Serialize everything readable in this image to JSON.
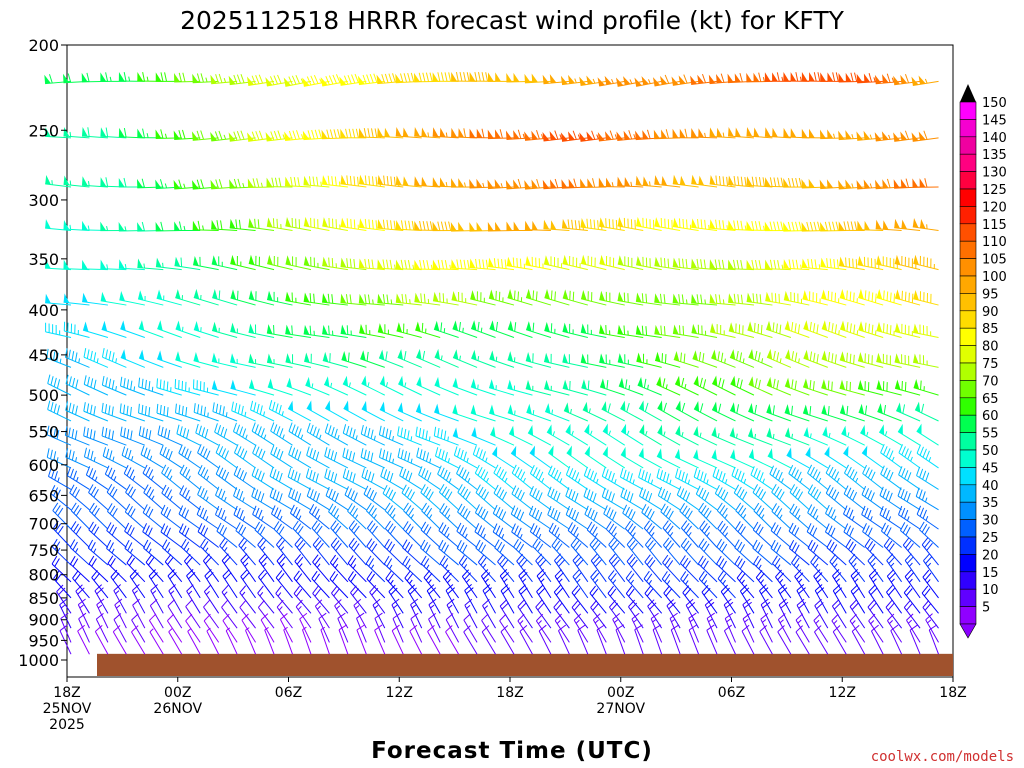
{
  "chart_data": {
    "type": "wind-barb-time-height",
    "title": "2025112518 HRRR forecast wind profile (kt) for KFTY",
    "xlabel": "Forecast Time (UTC)",
    "credit": "coolwx.com/models",
    "units": "kt",
    "x_ticks": [
      {
        "line1": "18Z",
        "line2": "25NOV",
        "line3": "2025",
        "hour": 0
      },
      {
        "line1": "00Z",
        "line2": "26NOV",
        "line3": "",
        "hour": 6
      },
      {
        "line1": "06Z",
        "line2": "",
        "line3": "",
        "hour": 12
      },
      {
        "line1": "12Z",
        "line2": "",
        "line3": "",
        "hour": 18
      },
      {
        "line1": "18Z",
        "line2": "",
        "line3": "",
        "hour": 24
      },
      {
        "line1": "00Z",
        "line2": "27NOV",
        "line3": "",
        "hour": 30
      },
      {
        "line1": "06Z",
        "line2": "",
        "line3": "",
        "hour": 36
      },
      {
        "line1": "12Z",
        "line2": "",
        "line3": "",
        "hour": 42
      },
      {
        "line1": "18Z",
        "line2": "",
        "line3": "",
        "hour": 48
      }
    ],
    "xlim": [
      0,
      48
    ],
    "y_ticks": [
      "200",
      "250",
      "300",
      "350",
      "400",
      "450",
      "500",
      "550",
      "600",
      "650",
      "700",
      "750",
      "800",
      "850",
      "900",
      "950",
      "1000"
    ],
    "ylim": [
      1000,
      200
    ],
    "y_scale": "log-pressure",
    "surface_pressure_hpa": 984,
    "colorbar_labels": [
      "150",
      "145",
      "140",
      "135",
      "130",
      "125",
      "120",
      "115",
      "110",
      "105",
      "100",
      "95",
      "90",
      "85",
      "80",
      "75",
      "70",
      "65",
      "60",
      "55",
      "50",
      "45",
      "40",
      "35",
      "30",
      "25",
      "20",
      "15",
      "10",
      "5"
    ],
    "colorbar_colors": [
      "#ff00ff",
      "#f500d0",
      "#f000a0",
      "#ff0080",
      "#ff0040",
      "#ff0000",
      "#ff2000",
      "#ff5000",
      "#ff7000",
      "#ff9000",
      "#ffa800",
      "#ffc000",
      "#ffdc00",
      "#ffff00",
      "#e0ff00",
      "#b0ff00",
      "#70ff00",
      "#30ff00",
      "#00ff50",
      "#00ffa0",
      "#00ffd0",
      "#00e0ff",
      "#00b8ff",
      "#0090ff",
      "#0060ff",
      "#0030ff",
      "#0000ff",
      "#3000ff",
      "#6000ff",
      "#9000ff"
    ],
    "levels_hpa": [
      220,
      255,
      290,
      325,
      360,
      395,
      430,
      465,
      500,
      535,
      570,
      605,
      640,
      675,
      710,
      745,
      780,
      815,
      850,
      885,
      920,
      955,
      985
    ],
    "series": [
      {
        "p": 220,
        "speed": [
          60,
          62,
          65,
          70,
          75,
          80,
          84,
          88,
          90,
          93,
          96,
          98,
          100,
          103,
          106,
          108,
          110,
          112,
          116,
          120,
          118,
          110,
          100
        ]
      },
      {
        "p": 255,
        "speed": [
          55,
          58,
          62,
          68,
          74,
          80,
          86,
          92,
          98,
          104,
          108,
          112,
          115,
          116,
          114,
          110,
          106,
          102,
          100,
          102,
          104,
          108,
          110
        ]
      },
      {
        "p": 290,
        "speed": [
          55,
          57,
          60,
          65,
          70,
          76,
          82,
          88,
          94,
          100,
          104,
          107,
          110,
          110,
          106,
          102,
          98,
          96,
          96,
          100,
          105,
          110,
          112
        ]
      },
      {
        "p": 325,
        "speed": [
          52,
          54,
          58,
          62,
          67,
          72,
          78,
          84,
          90,
          95,
          98,
          100,
          100,
          96,
          92,
          88,
          86,
          86,
          88,
          92,
          98,
          102,
          104
        ]
      },
      {
        "p": 360,
        "speed": [
          50,
          52,
          55,
          58,
          63,
          68,
          72,
          78,
          82,
          86,
          88,
          88,
          86,
          82,
          80,
          78,
          78,
          80,
          84,
          88,
          92,
          96,
          98
        ]
      },
      {
        "p": 395,
        "speed": [
          48,
          50,
          52,
          55,
          58,
          62,
          66,
          70,
          74,
          76,
          76,
          74,
          72,
          70,
          70,
          72,
          74,
          78,
          82,
          86,
          88,
          90,
          92
        ]
      },
      {
        "p": 430,
        "speed": [
          46,
          48,
          50,
          52,
          55,
          58,
          62,
          64,
          66,
          66,
          64,
          62,
          62,
          64,
          66,
          70,
          74,
          78,
          80,
          82,
          84,
          84,
          84
        ]
      },
      {
        "p": 465,
        "speed": [
          44,
          46,
          48,
          50,
          52,
          56,
          58,
          60,
          60,
          58,
          56,
          56,
          58,
          60,
          64,
          68,
          72,
          74,
          76,
          78,
          78,
          78,
          76
        ]
      },
      {
        "p": 500,
        "speed": [
          42,
          42,
          44,
          46,
          48,
          50,
          52,
          54,
          54,
          52,
          52,
          54,
          56,
          58,
          62,
          66,
          68,
          70,
          70,
          70,
          70,
          68,
          66
        ]
      },
      {
        "p": 535,
        "speed": [
          40,
          40,
          40,
          42,
          44,
          46,
          48,
          48,
          48,
          48,
          50,
          52,
          54,
          56,
          58,
          60,
          62,
          62,
          62,
          62,
          60,
          60,
          58
        ]
      },
      {
        "p": 570,
        "speed": [
          38,
          38,
          38,
          40,
          42,
          44,
          44,
          44,
          44,
          46,
          48,
          50,
          52,
          54,
          54,
          56,
          56,
          56,
          56,
          54,
          54,
          52,
          52
        ]
      },
      {
        "p": 605,
        "speed": [
          36,
          36,
          36,
          38,
          40,
          42,
          42,
          42,
          42,
          44,
          46,
          48,
          50,
          50,
          50,
          50,
          50,
          50,
          50,
          48,
          48,
          46,
          46
        ]
      },
      {
        "p": 640,
        "speed": [
          34,
          34,
          34,
          36,
          38,
          40,
          40,
          40,
          40,
          42,
          44,
          46,
          46,
          46,
          46,
          46,
          46,
          46,
          44,
          44,
          42,
          42,
          40
        ]
      },
      {
        "p": 675,
        "speed": [
          32,
          32,
          32,
          34,
          36,
          38,
          38,
          38,
          40,
          40,
          42,
          42,
          42,
          42,
          42,
          42,
          42,
          40,
          40,
          40,
          38,
          38,
          36
        ]
      },
      {
        "p": 710,
        "speed": [
          30,
          30,
          30,
          32,
          34,
          34,
          34,
          36,
          36,
          36,
          38,
          38,
          38,
          38,
          38,
          38,
          38,
          36,
          36,
          36,
          34,
          34,
          34
        ]
      },
      {
        "p": 745,
        "speed": [
          28,
          28,
          28,
          28,
          30,
          30,
          30,
          32,
          32,
          32,
          34,
          34,
          34,
          34,
          34,
          34,
          34,
          32,
          32,
          32,
          32,
          30,
          30
        ]
      },
      {
        "p": 780,
        "speed": [
          25,
          25,
          25,
          26,
          26,
          26,
          28,
          28,
          28,
          30,
          30,
          30,
          30,
          30,
          30,
          30,
          30,
          30,
          30,
          28,
          28,
          28,
          28
        ]
      },
      {
        "p": 815,
        "speed": [
          22,
          22,
          22,
          22,
          22,
          24,
          24,
          24,
          26,
          26,
          26,
          28,
          28,
          28,
          28,
          28,
          28,
          28,
          26,
          26,
          26,
          26,
          26
        ]
      },
      {
        "p": 850,
        "speed": [
          20,
          20,
          20,
          20,
          20,
          20,
          22,
          22,
          22,
          24,
          24,
          24,
          24,
          26,
          26,
          26,
          26,
          24,
          24,
          24,
          24,
          24,
          24
        ]
      },
      {
        "p": 885,
        "speed": [
          18,
          18,
          16,
          16,
          16,
          16,
          18,
          18,
          20,
          20,
          20,
          22,
          22,
          22,
          22,
          22,
          22,
          22,
          22,
          22,
          22,
          22,
          22
        ]
      },
      {
        "p": 920,
        "speed": [
          15,
          14,
          12,
          12,
          12,
          12,
          14,
          14,
          16,
          16,
          16,
          18,
          18,
          18,
          18,
          18,
          18,
          18,
          18,
          18,
          18,
          18,
          18
        ]
      },
      {
        "p": 955,
        "speed": [
          12,
          10,
          10,
          8,
          8,
          8,
          10,
          10,
          10,
          12,
          12,
          12,
          14,
          14,
          14,
          14,
          14,
          14,
          14,
          14,
          14,
          14,
          14
        ]
      },
      {
        "p": 985,
        "speed": [
          10,
          8,
          8,
          6,
          6,
          6,
          6,
          8,
          8,
          8,
          10,
          10,
          10,
          10,
          10,
          10,
          10,
          10,
          10,
          10,
          10,
          10,
          10
        ]
      }
    ]
  }
}
